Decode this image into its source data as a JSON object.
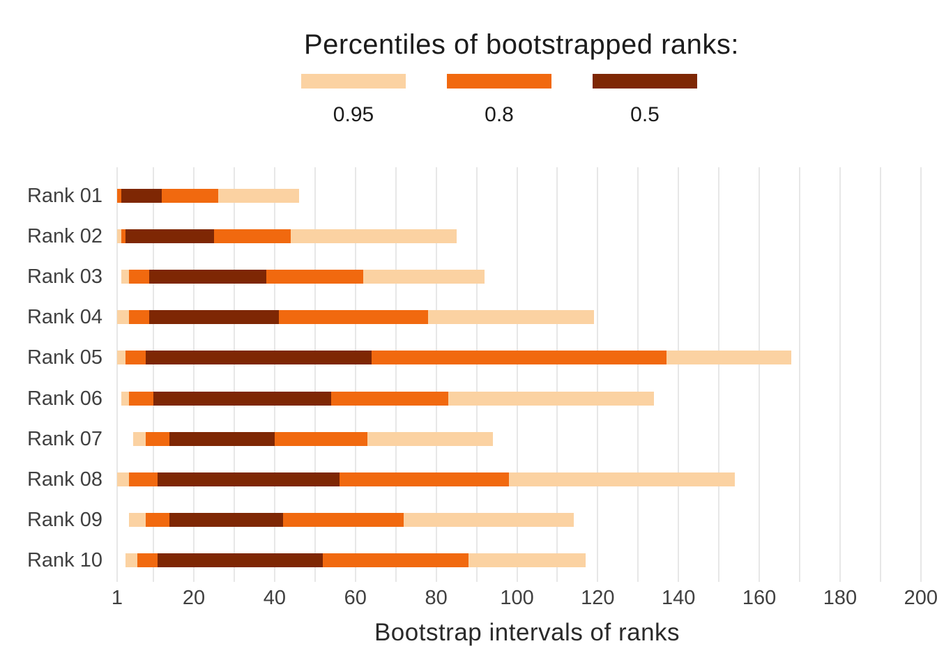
{
  "header": {
    "title": "Percentiles of bootstrapped ranks:",
    "legend": [
      {
        "label": "0.95",
        "color": "#fbd2a2"
      },
      {
        "label": "0.8",
        "color": "#f1690f"
      },
      {
        "label": "0.5",
        "color": "#7e2704"
      }
    ]
  },
  "chart_data": {
    "type": "bar",
    "subtype": "horizontal-nested-percentile-intervals",
    "title": "Percentiles of bootstrapped ranks:",
    "xlabel": "Bootstrap intervals of ranks",
    "ylabel": "",
    "categories": [
      "Rank 01",
      "Rank 02",
      "Rank 03",
      "Rank 04",
      "Rank 05",
      "Rank 06",
      "Rank 07",
      "Rank 08",
      "Rank 09",
      "Rank 10"
    ],
    "xlim": [
      1,
      204
    ],
    "x_ticks": [
      1,
      20,
      40,
      60,
      80,
      100,
      120,
      140,
      160,
      180,
      200
    ],
    "grid_values": [
      1,
      10,
      20,
      30,
      40,
      50,
      60,
      70,
      80,
      90,
      100,
      110,
      120,
      130,
      140,
      150,
      160,
      170,
      180,
      190,
      200
    ],
    "grid": "vertical",
    "grid_color": "#e7e7e7",
    "legend_position": "top",
    "series": [
      {
        "name": "0.95",
        "percentile": 0.95,
        "color": "#fbd2a2",
        "intervals": [
          [
            1,
            46
          ],
          [
            1,
            85
          ],
          [
            2,
            92
          ],
          [
            1,
            119
          ],
          [
            1,
            168
          ],
          [
            2,
            134
          ],
          [
            5,
            94
          ],
          [
            1,
            154
          ],
          [
            4,
            114
          ],
          [
            3,
            117
          ]
        ]
      },
      {
        "name": "0.8",
        "percentile": 0.8,
        "color": "#f1690f",
        "intervals": [
          [
            1,
            26
          ],
          [
            2,
            44
          ],
          [
            4,
            62
          ],
          [
            4,
            78
          ],
          [
            3,
            137
          ],
          [
            4,
            83
          ],
          [
            8,
            63
          ],
          [
            4,
            98
          ],
          [
            8,
            72
          ],
          [
            6,
            88
          ]
        ]
      },
      {
        "name": "0.5",
        "percentile": 0.5,
        "color": "#7e2704",
        "intervals": [
          [
            2,
            12
          ],
          [
            3,
            25
          ],
          [
            9,
            38
          ],
          [
            9,
            41
          ],
          [
            8,
            64
          ],
          [
            10,
            54
          ],
          [
            14,
            40
          ],
          [
            11,
            56
          ],
          [
            14,
            42
          ],
          [
            11,
            52
          ]
        ]
      }
    ]
  }
}
